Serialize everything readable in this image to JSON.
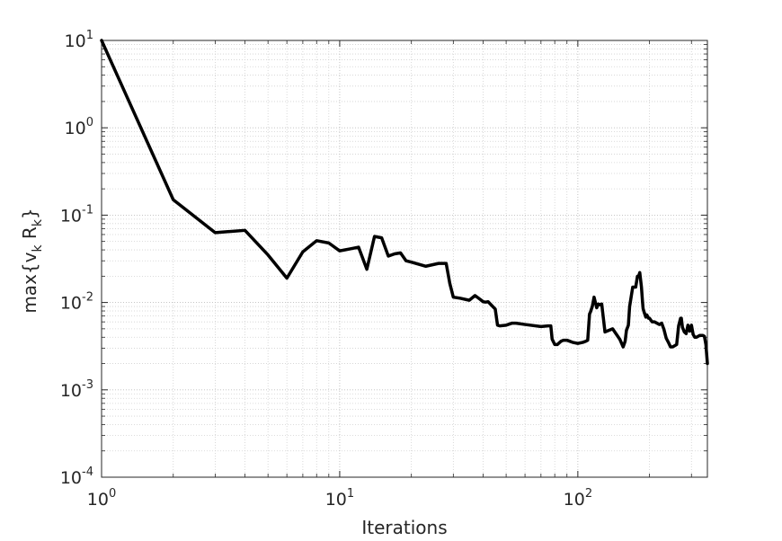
{
  "chart_data": {
    "type": "line",
    "xlabel": "Iterations",
    "ylabel": {
      "base": "max{v",
      "sub1": "k",
      "mid": " R",
      "sub2": "k",
      "end": "}"
    },
    "xscale": "log",
    "yscale": "log",
    "xlim": [
      1,
      350
    ],
    "ylim": [
      0.0001,
      10
    ],
    "grid": "on (major and minor, dotted)",
    "x_ticks": [
      {
        "value": 1,
        "base": "10",
        "exp": "0"
      },
      {
        "value": 10,
        "base": "10",
        "exp": "1"
      },
      {
        "value": 100,
        "base": "10",
        "exp": "2"
      }
    ],
    "y_ticks": [
      {
        "value": 10,
        "base": "10",
        "exp": "1"
      },
      {
        "value": 1,
        "base": "10",
        "exp": "0"
      },
      {
        "value": 0.1,
        "base": "10",
        "exp": "-1"
      },
      {
        "value": 0.01,
        "base": "10",
        "exp": "-2"
      },
      {
        "value": 0.001,
        "base": "10",
        "exp": "-3"
      },
      {
        "value": 0.0001,
        "base": "10",
        "exp": "-4"
      }
    ],
    "line_color": "#000000",
    "series": [
      {
        "x": [
          1,
          2,
          3,
          4,
          5,
          6,
          7,
          8,
          9,
          10,
          11,
          12,
          13,
          14,
          15,
          16,
          17,
          18,
          19,
          20,
          23,
          26,
          28,
          29,
          30,
          32,
          35,
          37,
          39,
          40,
          41,
          42,
          45,
          46,
          47,
          50,
          53,
          55,
          60,
          70,
          75,
          77,
          78,
          80,
          82,
          85,
          87,
          90,
          95,
          100,
          105,
          108,
          110,
          112,
          113,
          115,
          117,
          120,
          122,
          124,
          126,
          130,
          140,
          150,
          155,
          158,
          160,
          163,
          165,
          170,
          175,
          178,
          180,
          182,
          185,
          187,
          188,
          190,
          193,
          195,
          198,
          200,
          205,
          210,
          220,
          225,
          230,
          235,
          240,
          245,
          250,
          255,
          260,
          265,
          270,
          272,
          275,
          280,
          285,
          290,
          295,
          300,
          305,
          310,
          315,
          320,
          325,
          330,
          335,
          340,
          345,
          350
        ],
        "y": [
          10,
          0.15,
          0.063,
          0.067,
          0.035,
          0.019,
          0.038,
          0.051,
          0.048,
          0.039,
          0.041,
          0.043,
          0.024,
          0.057,
          0.055,
          0.034,
          0.036,
          0.037,
          0.03,
          0.029,
          0.026,
          0.028,
          0.028,
          0.0165,
          0.0115,
          0.0112,
          0.0106,
          0.012,
          0.0108,
          0.0102,
          0.0101,
          0.0102,
          0.0084,
          0.0055,
          0.0054,
          0.0055,
          0.0058,
          0.0058,
          0.0056,
          0.0053,
          0.0054,
          0.0054,
          0.0038,
          0.0033,
          0.0033,
          0.0036,
          0.0037,
          0.0037,
          0.0035,
          0.0034,
          0.0035,
          0.0036,
          0.0037,
          0.0074,
          0.0078,
          0.009,
          0.0115,
          0.0087,
          0.0096,
          0.0094,
          0.0096,
          0.0046,
          0.005,
          0.0038,
          0.0031,
          0.0036,
          0.0048,
          0.0055,
          0.009,
          0.015,
          0.015,
          0.02,
          0.02,
          0.022,
          0.015,
          0.01,
          0.0085,
          0.0077,
          0.0068,
          0.0072,
          0.0066,
          0.0066,
          0.006,
          0.006,
          0.0056,
          0.0058,
          0.0049,
          0.0039,
          0.0035,
          0.0031,
          0.0031,
          0.0032,
          0.0033,
          0.0054,
          0.0066,
          0.0066,
          0.0052,
          0.0046,
          0.0044,
          0.0055,
          0.0047,
          0.0055,
          0.0043,
          0.004,
          0.004,
          0.0041,
          0.0042,
          0.0042,
          0.0042,
          0.0041,
          0.0033,
          0.002
        ]
      }
    ]
  }
}
